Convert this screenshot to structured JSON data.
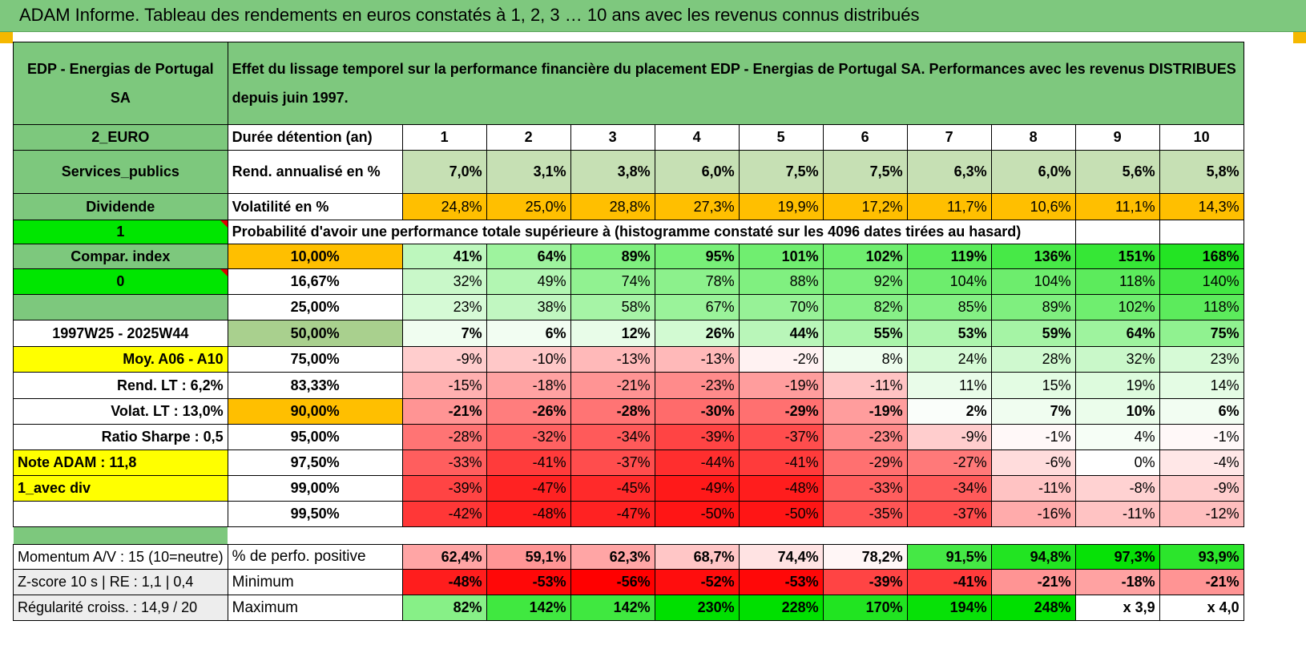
{
  "title": "ADAM Informe. Tableau des rendements en euros constatés à 1, 2, 3 … 10 ans avec les revenus connus distribués",
  "colors": {
    "header_green": "#7ec87e",
    "label_green": "#7dc87d",
    "bright_green": "#00e600",
    "yellow": "#ffff00",
    "orange": "#ffbf00",
    "olive_green": "#a9d08e",
    "red_text": "#d00000"
  },
  "header": {
    "asset_name": "EDP - Energias de Portugal SA",
    "description": "Effet du lissage temporel sur la performance financière du placement EDP - Energias de Portugal SA. Performances avec les revenus DISTRIBUES depuis juin 1997."
  },
  "sidebar": {
    "currency": "2_EURO",
    "sector": "Services_publics",
    "income_type": "Dividende",
    "flag_one": "1",
    "compar_index": "Compar. index",
    "flag_zero": "0",
    "period": "1997W25 - 2025W44",
    "moy": "Moy. A06 - A10",
    "rend_lt": "Rend. LT :    6,2%",
    "volat_lt": "Volat. LT :    13,0%",
    "sharpe": "Ratio Sharpe :    0,5",
    "note": "Note ADAM : 11,8",
    "avec_div": "1_avec div",
    "momentum": "Momentum A/V : 15 (10=neutre)",
    "zscore": "Z-score 10 s | RE : 1,1 | 0,4",
    "regularite": "Régularité croiss. : 14,9 / 20"
  },
  "labels": {
    "duree": "Durée détention (an)",
    "rend": "Rend. annualisé en %",
    "vol": "Volatilité en %",
    "proba": "Probabilité d'avoir une performance totale supérieure à (histogramme constaté sur les 4096 dates tirées au hasard)",
    "pct_pos": "% de perfo. positive",
    "min": "Minimum",
    "max": "Maximum"
  },
  "years": [
    "1",
    "2",
    "3",
    "4",
    "5",
    "6",
    "7",
    "8",
    "9",
    "10"
  ],
  "rend": [
    "7,0%",
    "3,1%",
    "3,8%",
    "6,0%",
    "7,5%",
    "7,5%",
    "6,3%",
    "6,0%",
    "5,6%",
    "5,8%"
  ],
  "vol": [
    "24,8%",
    "25,0%",
    "28,8%",
    "27,3%",
    "19,9%",
    "17,2%",
    "11,7%",
    "10,6%",
    "11,1%",
    "14,3%"
  ],
  "prob_rows": [
    {
      "level": "10,00%",
      "values": [
        "41%",
        "64%",
        "89%",
        "95%",
        "101%",
        "102%",
        "119%",
        "136%",
        "151%",
        "168%"
      ]
    },
    {
      "level": "16,67%",
      "values": [
        "32%",
        "49%",
        "74%",
        "78%",
        "88%",
        "92%",
        "104%",
        "104%",
        "118%",
        "140%"
      ]
    },
    {
      "level": "25,00%",
      "values": [
        "23%",
        "38%",
        "58%",
        "67%",
        "70%",
        "82%",
        "85%",
        "89%",
        "102%",
        "118%"
      ]
    },
    {
      "level": "50,00%",
      "values": [
        "7%",
        "6%",
        "12%",
        "26%",
        "44%",
        "55%",
        "53%",
        "59%",
        "64%",
        "75%"
      ]
    },
    {
      "level": "75,00%",
      "values": [
        "-9%",
        "-10%",
        "-13%",
        "-13%",
        "-2%",
        "8%",
        "24%",
        "28%",
        "32%",
        "23%"
      ]
    },
    {
      "level": "83,33%",
      "values": [
        "-15%",
        "-18%",
        "-21%",
        "-23%",
        "-19%",
        "-11%",
        "11%",
        "15%",
        "19%",
        "14%"
      ]
    },
    {
      "level": "90,00%",
      "values": [
        "-21%",
        "-26%",
        "-28%",
        "-30%",
        "-29%",
        "-19%",
        "2%",
        "7%",
        "10%",
        "6%"
      ]
    },
    {
      "level": "95,00%",
      "values": [
        "-28%",
        "-32%",
        "-34%",
        "-39%",
        "-37%",
        "-23%",
        "-9%",
        "-1%",
        "4%",
        "-1%"
      ]
    },
    {
      "level": "97,50%",
      "values": [
        "-33%",
        "-41%",
        "-37%",
        "-44%",
        "-41%",
        "-29%",
        "-27%",
        "-6%",
        "0%",
        "-4%"
      ]
    },
    {
      "level": "99,00%",
      "values": [
        "-39%",
        "-47%",
        "-45%",
        "-49%",
        "-48%",
        "-33%",
        "-34%",
        "-11%",
        "-8%",
        "-9%"
      ]
    },
    {
      "level": "99,50%",
      "values": [
        "-42%",
        "-48%",
        "-47%",
        "-50%",
        "-50%",
        "-35%",
        "-37%",
        "-16%",
        "-11%",
        "-12%"
      ]
    }
  ],
  "pct_pos": [
    "62,4%",
    "59,1%",
    "62,3%",
    "68,7%",
    "74,4%",
    "78,2%",
    "91,5%",
    "94,8%",
    "97,3%",
    "93,9%"
  ],
  "minimum": [
    "-48%",
    "-53%",
    "-56%",
    "-52%",
    "-53%",
    "-39%",
    "-41%",
    "-21%",
    "-18%",
    "-21%"
  ],
  "maximum": [
    "82%",
    "142%",
    "142%",
    "230%",
    "228%",
    "170%",
    "194%",
    "248%",
    "x 3,9",
    "x 4,0"
  ]
}
